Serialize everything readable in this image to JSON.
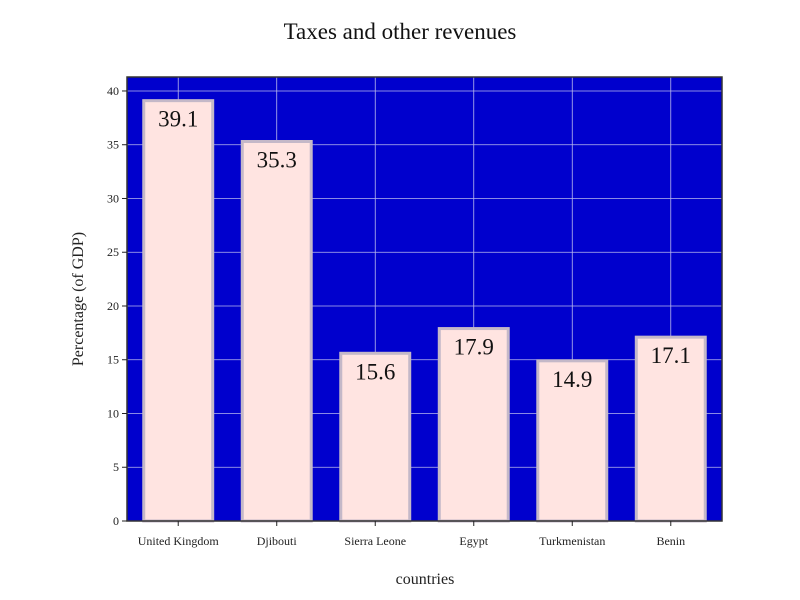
{
  "chart_data": {
    "type": "bar",
    "title": "Taxes and other revenues",
    "xlabel": "countries",
    "ylabel": "Percentage (of GDP)",
    "categories": [
      "United Kingdom",
      "Djibouti",
      "Sierra Leone",
      "Egypt",
      "Turkmenistan",
      "Benin"
    ],
    "values": [
      39.1,
      35.3,
      15.6,
      17.9,
      14.9,
      17.1
    ],
    "value_labels": [
      "39.1",
      "35.3",
      "15.6",
      "17.9",
      "14.9",
      "17.1"
    ],
    "yticks": [
      0,
      5,
      10,
      15,
      20,
      25,
      30,
      35,
      40
    ],
    "ytick_labels": [
      "0",
      "5",
      "10",
      "15",
      "20",
      "25",
      "30",
      "35",
      "40"
    ],
    "ylim": [
      0,
      41.3
    ],
    "grid": true,
    "colors": {
      "plot_background": "#0000cd",
      "bar_fill": "#ffe4e1",
      "bar_edge": "#c4b8c8",
      "grid": "#b9b9ec"
    }
  }
}
